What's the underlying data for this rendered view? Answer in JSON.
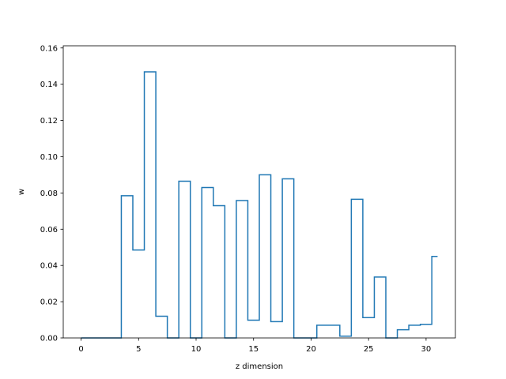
{
  "chart_data": {
    "type": "line",
    "drawstyle": "steps-mid",
    "xlabel": "z dimension",
    "ylabel": "w",
    "title": "",
    "xlim": [
      -1.55,
      32.55
    ],
    "ylim": [
      0.0,
      0.1612
    ],
    "xticks": [
      0,
      5,
      10,
      15,
      20,
      25,
      30
    ],
    "yticks": [
      0.0,
      0.02,
      0.04,
      0.06,
      0.08,
      0.1,
      0.12,
      0.14,
      0.16
    ],
    "ytick_labels": [
      "0.00",
      "0.02",
      "0.04",
      "0.06",
      "0.08",
      "0.10",
      "0.12",
      "0.14",
      "0.16"
    ],
    "grid": false,
    "line_color": "#1f77b4",
    "series": [
      {
        "x": [
          0,
          1,
          2,
          3,
          4,
          5,
          6,
          7,
          8,
          9,
          10,
          11,
          12,
          13,
          14,
          15,
          16,
          17,
          18,
          19,
          20,
          21,
          22,
          23,
          24,
          25,
          26,
          27,
          28,
          29,
          30,
          31
        ],
        "values": [
          0.0,
          0.0,
          0.0,
          0.0,
          0.0785,
          0.0485,
          0.1468,
          0.012,
          0.0,
          0.0865,
          0.0,
          0.083,
          0.073,
          0.0,
          0.0758,
          0.0098,
          0.09,
          0.009,
          0.0878,
          0.0,
          0.0,
          0.007,
          0.007,
          0.001,
          0.0765,
          0.0112,
          0.0336,
          0.0,
          0.0045,
          0.007,
          0.0075,
          0.045
        ]
      }
    ]
  }
}
